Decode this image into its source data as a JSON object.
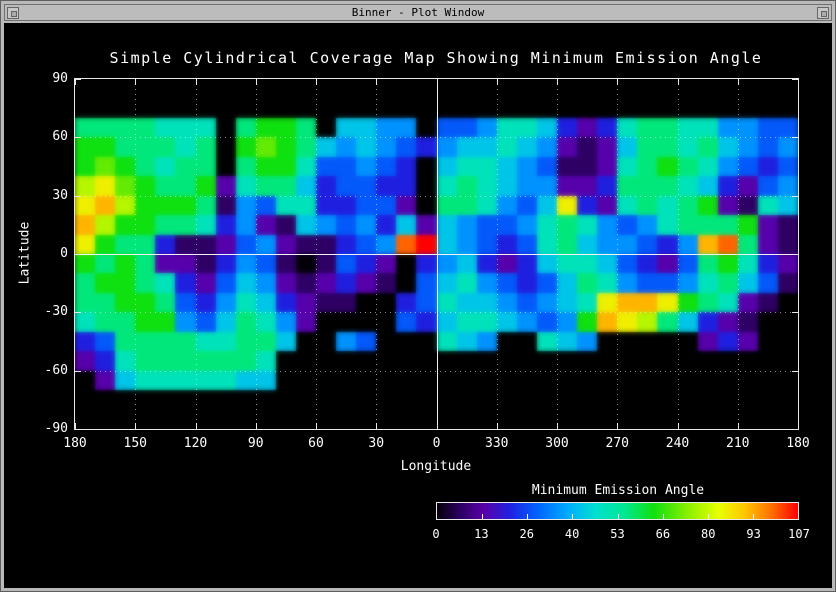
{
  "window": {
    "title": "Binner - Plot Window",
    "icons": {
      "titlebar_left": "window-menu-icon",
      "titlebar_right": "window-resize-icon"
    }
  },
  "colors": {
    "frame_bg": "#b9b9b9",
    "titlebar_text": "#000000",
    "plot_bg": "#000000",
    "axis": "#ffffff",
    "text": "#ffffff"
  },
  "plot": {
    "title": "Simple Cylindrical Coverage Map Showing Minimum Emission Angle",
    "xlabel": "Longitude",
    "ylabel": "Latitude"
  },
  "colorbar": {
    "title": "Minimum Emission Angle",
    "tick_labels": [
      "0",
      "13",
      "26",
      "40",
      "53",
      "66",
      "80",
      "93",
      "107"
    ]
  },
  "chart_data": {
    "type": "heatmap",
    "title": "Simple Cylindrical Coverage Map Showing Minimum Emission Angle",
    "xlabel": "Longitude",
    "ylabel": "Latitude",
    "x_tick_labels": [
      "180",
      "150",
      "120",
      "90",
      "60",
      "30",
      "0",
      "330",
      "300",
      "270",
      "240",
      "210",
      "180"
    ],
    "y_tick_labels": [
      "90",
      "60",
      "30",
      "0",
      "-30",
      "-60",
      "-90"
    ],
    "value_label": "Minimum Emission Angle",
    "value_ticks": [
      0,
      13,
      26,
      40,
      53,
      66,
      80,
      93,
      107
    ],
    "value_range": [
      0,
      107
    ],
    "no_data_color": "#000000",
    "grid_rows": 18,
    "grid_cols": 36,
    "grid_note": "Each char is a 10x10 degree cell; rows run lat +90 (top) to -90 (bottom); cols run lon 180 through 0 (center) to 180; '.' = no coverage (black); hex digit 0-f = minimum emission angle level, value = level/15*107",
    "grid": [
      "....................................",
      "....................................",
      "8888777.8998.6655.445776323788775544",
      "9988878.9a98656543566765212688786545",
      "9a98788.899744543.677654112789875434",
      "bca98892788634433.787655223888763245",
      "cdb99981547733442.887546c32787892176",
      "db9988735216545362654457875457888921",
      "c988311245211345ef6543478655435de821",
      "9898221354101432.3563236776432489732",
      "8998732465212321.4675434687544578641",
      "88998435763211..3476654567cddc98721.",
      "788995468752....4367765459dcb86321..",
      "34888877886..54...765..765.....232..",
      "2378888887..........................",
      ".267777766..........................",
      "....................................",
      "...................................."
    ],
    "colormap_stops": [
      {
        "t": 0.0,
        "color": "#05000a"
      },
      {
        "t": 0.07,
        "color": "#30006a"
      },
      {
        "t": 0.13,
        "color": "#5a00a8"
      },
      {
        "t": 0.2,
        "color": "#2020e0"
      },
      {
        "t": 0.28,
        "color": "#0064ff"
      },
      {
        "t": 0.36,
        "color": "#00aaff"
      },
      {
        "t": 0.44,
        "color": "#00e0d0"
      },
      {
        "t": 0.52,
        "color": "#00e890"
      },
      {
        "t": 0.6,
        "color": "#10e010"
      },
      {
        "t": 0.7,
        "color": "#90f000"
      },
      {
        "t": 0.78,
        "color": "#e8ff00"
      },
      {
        "t": 0.85,
        "color": "#ffc800"
      },
      {
        "t": 0.92,
        "color": "#ff7800"
      },
      {
        "t": 1.0,
        "color": "#ff0000"
      }
    ],
    "grid_lines": {
      "dotted_every_deg": 30,
      "solid_lines": [
        "lon 0",
        "lat 0"
      ]
    }
  }
}
